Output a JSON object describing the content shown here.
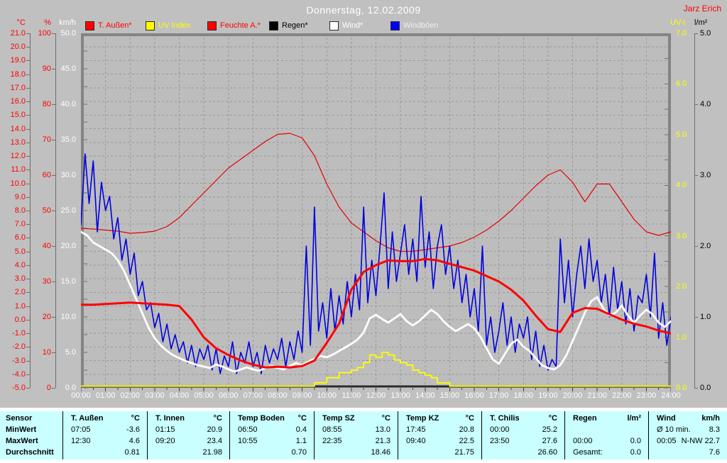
{
  "header": {
    "title": "Donnerstag, 12.02.2009",
    "station": "Jarz Erich"
  },
  "legend": {
    "items": [
      {
        "label": "T. Außen*",
        "swatch": "#ff0000",
        "text_color": "#ff0000"
      },
      {
        "label": "UV Index",
        "swatch": "#ffff00",
        "text_color": "#ffff00"
      },
      {
        "label": "Feuchte A.*",
        "swatch": "#ff0000",
        "text_color": "#ff0000"
      },
      {
        "label": "Regen*",
        "swatch": "#000000",
        "text_color": "#000000"
      },
      {
        "label": "Wind*",
        "swatch": "#ffffff",
        "text_color": "#ffffff"
      },
      {
        "label": "Windböen",
        "swatch": "#0000ff",
        "text_color": "#f0f0f0"
      }
    ]
  },
  "chart_data": {
    "type": "line",
    "title": "Donnerstag, 12.02.2009",
    "grid": true,
    "x_labels": [
      "00:00",
      "01:00",
      "02:00",
      "03:00",
      "04:00",
      "05:00",
      "06:00",
      "07:00",
      "08:00",
      "09:00",
      "10:00",
      "11:00",
      "12:00",
      "13:00",
      "14:00",
      "15:00",
      "16:00",
      "17:00",
      "18:00",
      "19:00",
      "20:00",
      "21:00",
      "22:00",
      "23:00",
      "24:00"
    ],
    "axes": {
      "celsius": {
        "title": "°C",
        "color": "#ff0000",
        "min": -5,
        "max": 21,
        "side": "left",
        "tick_labels": [
          "21.0",
          "20.0",
          "19.0",
          "18.0",
          "17.0",
          "16.0",
          "15.0",
          "14.0",
          "13.0",
          "12.0",
          "11.0",
          "10.0",
          "9.0",
          "8.0",
          "7.0",
          "6.0",
          "5.0",
          "4.0",
          "3.0",
          "2.0",
          "1.0",
          "0.0",
          "-1.0",
          "-2.0",
          "-3.0",
          "-4.0",
          "-5.0"
        ]
      },
      "percent": {
        "title": "%",
        "color": "#ff0000",
        "min": 0,
        "max": 100,
        "side": "left",
        "tick_labels": [
          "100",
          "90",
          "80",
          "70",
          "60",
          "50",
          "40",
          "30",
          "20",
          "10",
          "0"
        ]
      },
      "kmh": {
        "title": "km/h",
        "color": "#ffffff",
        "min": 0,
        "max": 50,
        "side": "left",
        "tick_labels": [
          "50.0",
          "45.0",
          "40.0",
          "35.0",
          "30.0",
          "25.0",
          "20.0",
          "15.0",
          "10.0",
          "5.0",
          "0.0"
        ]
      },
      "uv": {
        "title": "UV-I",
        "color": "#ffff00",
        "min": 0,
        "max": 7,
        "side": "right",
        "tick_labels": [
          "7.0",
          "6.0",
          "5.0",
          "4.0",
          "3.0",
          "2.0",
          "1.0",
          "0.0"
        ]
      },
      "rain": {
        "title": "l/m²",
        "color": "#000000",
        "min": 0,
        "max": 5,
        "side": "right",
        "tick_labels": [
          "5.0",
          "4.0",
          "3.0",
          "2.0",
          "1.0",
          "0.0"
        ]
      }
    },
    "series": [
      {
        "name": "T. Außen*",
        "axis": "celsius",
        "color": "#ff0000",
        "width": 3,
        "interval_min": 30,
        "values": [
          1.1,
          1.1,
          1.15,
          1.2,
          1.25,
          1.2,
          1.15,
          1.1,
          1.0,
          0.0,
          -1.3,
          -2.1,
          -2.6,
          -3.0,
          -3.3,
          -3.5,
          -3.45,
          -3.5,
          -3.4,
          -3.0,
          -1.7,
          -0.3,
          2.2,
          3.5,
          4.0,
          4.35,
          4.3,
          4.3,
          4.45,
          4.35,
          4.1,
          3.85,
          3.6,
          3.2,
          2.8,
          2.2,
          1.4,
          0.3,
          -0.7,
          -0.9,
          0.5,
          0.85,
          0.8,
          0.4,
          0.0,
          -0.3,
          -0.5,
          -0.8,
          -1.0
        ]
      },
      {
        "name": "UV Index",
        "axis": "uv",
        "color": "#ffff00",
        "width": 1.8,
        "interval_min": 15,
        "step": true,
        "values": [
          0,
          0,
          0,
          0,
          0,
          0,
          0,
          0,
          0,
          0,
          0,
          0,
          0,
          0,
          0,
          0,
          0,
          0,
          0,
          0,
          0,
          0,
          0,
          0,
          0,
          0,
          0,
          0,
          0,
          0,
          0,
          0,
          0,
          0,
          0,
          0,
          0,
          0,
          0.1,
          0.1,
          0.2,
          0.2,
          0.3,
          0.3,
          0.35,
          0.4,
          0.5,
          0.65,
          0.6,
          0.7,
          0.65,
          0.55,
          0.5,
          0.45,
          0.35,
          0.3,
          0.25,
          0.2,
          0.1,
          0.1,
          0,
          0,
          0,
          0,
          0,
          0,
          0,
          0,
          0,
          0,
          0,
          0,
          0,
          0,
          0,
          0,
          0,
          0,
          0,
          0,
          0,
          0,
          0,
          0,
          0,
          0,
          0,
          0,
          0,
          0,
          0,
          0,
          0,
          0,
          0,
          0,
          0
        ]
      },
      {
        "name": "Feuchte A.*",
        "axis": "percent",
        "color": "#e60000",
        "width": 1.2,
        "interval_min": 30,
        "values": [
          45,
          44.8,
          44.5,
          44.2,
          43.6,
          43.8,
          44.2,
          45.5,
          48,
          51.5,
          55,
          58.5,
          62,
          64.5,
          67,
          69.5,
          71.5,
          71.8,
          70.5,
          65.5,
          57.5,
          51,
          46.5,
          44,
          41.5,
          39.5,
          38.5,
          38.5,
          39,
          39.5,
          40,
          41,
          42.5,
          44.5,
          47,
          50,
          53.5,
          57,
          60,
          61.5,
          58,
          52.5,
          57.5,
          57.5,
          52.5,
          47.5,
          44,
          43,
          44
        ]
      },
      {
        "name": "Regen*",
        "axis": "rain",
        "color": "#000000",
        "width": 1.4,
        "interval_min": 1440,
        "values": [
          0,
          0
        ]
      },
      {
        "name": "Wind*",
        "axis": "kmh",
        "color": "#ffffff",
        "width": 2.8,
        "interval_min": 15,
        "values": [
          22,
          21.5,
          20.5,
          20,
          19.5,
          19,
          18,
          16.5,
          14.5,
          12.5,
          10.5,
          8.5,
          7,
          6,
          5.2,
          4.6,
          4.2,
          3.8,
          3.5,
          3.2,
          3,
          2.8,
          3.3,
          3,
          2.6,
          2.3,
          2.6,
          2.9,
          2.6,
          2.4,
          2.8,
          3.1,
          2.8,
          2.6,
          3.1,
          3.5,
          3.2,
          3.7,
          4.1,
          4.5,
          4.3,
          4.7,
          5.2,
          5.7,
          6.2,
          6.8,
          7.8,
          9.8,
          10.3,
          9.7,
          9.2,
          9.8,
          10.4,
          9.4,
          8.8,
          9.4,
          10.2,
          11,
          10.4,
          9.4,
          8.6,
          8,
          8.5,
          9,
          8.4,
          7.2,
          5.6,
          4,
          3.4,
          4.8,
          6.2,
          6.8,
          5.8,
          5.2,
          4.2,
          3.2,
          2.8,
          2.6,
          3.2,
          4.6,
          6.6,
          8.6,
          10.6,
          12.2,
          12.8,
          11.2,
          10.2,
          10.6,
          11.6,
          10.2,
          9.2,
          10.2,
          11,
          10.4,
          9.2,
          8.6,
          9.4
        ]
      },
      {
        "name": "Windböen",
        "axis": "kmh",
        "color": "#0000e0",
        "width": 1.6,
        "interval_min": 10,
        "values": [
          23,
          33,
          26,
          32,
          22,
          29,
          25,
          27,
          21,
          24,
          18,
          21,
          16,
          19,
          13,
          15,
          11,
          12,
          8.5,
          10.5,
          6.5,
          9,
          5.5,
          7.5,
          5,
          6.5,
          3.5,
          6,
          3,
          5.5,
          4,
          6,
          2.5,
          5.5,
          2,
          4.5,
          3,
          6.5,
          2,
          5,
          3.5,
          6.5,
          3,
          5,
          2,
          6,
          3.5,
          5.5,
          4,
          7,
          3,
          6.5,
          4,
          8,
          5,
          20,
          6,
          25.5,
          8,
          12,
          7,
          14,
          8,
          13,
          9,
          15,
          10,
          16,
          11,
          25.5,
          12,
          18,
          13,
          20,
          27.5,
          14,
          22,
          15,
          19,
          23,
          16,
          21,
          15,
          27,
          17,
          22,
          14,
          20,
          23,
          16,
          20,
          14,
          18,
          12,
          16,
          10,
          14,
          8,
          20,
          6,
          10,
          5,
          8,
          12,
          6,
          10,
          5,
          9,
          7,
          10,
          4,
          8,
          3,
          6,
          2.5,
          4,
          3,
          21,
          12,
          18,
          10,
          16,
          20,
          14,
          21,
          15,
          18,
          12,
          16,
          10,
          17,
          11,
          15,
          9,
          14,
          8,
          13,
          12,
          16,
          10,
          19,
          7,
          12,
          6,
          10
        ]
      }
    ],
    "draw_order": [
      3,
      1,
      2,
      5,
      4,
      0
    ]
  },
  "table": {
    "row_labels": [
      "Sensor",
      "MinWert",
      "MaxWert",
      "Durchschnitt"
    ],
    "groups": [
      {
        "name": "T. Außen",
        "unit": "°C",
        "rows": [
          [
            "07:05",
            "-3.6"
          ],
          [
            "12:30",
            "4.6"
          ],
          [
            "",
            "0.81"
          ]
        ]
      },
      {
        "name": "T. Innen",
        "unit": "°C",
        "rows": [
          [
            "01:15",
            "20.9"
          ],
          [
            "09:20",
            "23.4"
          ],
          [
            "",
            "21.98"
          ]
        ]
      },
      {
        "name": "Temp Boden",
        "unit": "°C",
        "rows": [
          [
            "06:50",
            "0.4"
          ],
          [
            "10:55",
            "1.1"
          ],
          [
            "",
            "0.70"
          ]
        ]
      },
      {
        "name": "Temp SZ",
        "unit": "°C",
        "rows": [
          [
            "08:55",
            "13.0"
          ],
          [
            "22:35",
            "21.3"
          ],
          [
            "",
            "18.46"
          ]
        ]
      },
      {
        "name": "Temp KZ",
        "unit": "°C",
        "rows": [
          [
            "17:45",
            "20.8"
          ],
          [
            "09:40",
            "22.5"
          ],
          [
            "",
            "21.75"
          ]
        ]
      },
      {
        "name": "T. Chilis",
        "unit": "°C",
        "rows": [
          [
            "00:00",
            "25.2"
          ],
          [
            "23:50",
            "27.6"
          ],
          [
            "",
            "26.60"
          ]
        ]
      },
      {
        "name": "Regen",
        "unit": "l/m²",
        "rows": [
          [
            "",
            ""
          ],
          [
            "00:00",
            "0.0"
          ],
          [
            "Gesamt:",
            "0.0"
          ]
        ]
      },
      {
        "name": "Wind",
        "unit": "km/h",
        "rows": [
          [
            "Ø 10 min.",
            "8.3"
          ],
          [
            "00:05",
            "N-NW 22.7"
          ],
          [
            "",
            "7.6"
          ]
        ]
      }
    ]
  }
}
